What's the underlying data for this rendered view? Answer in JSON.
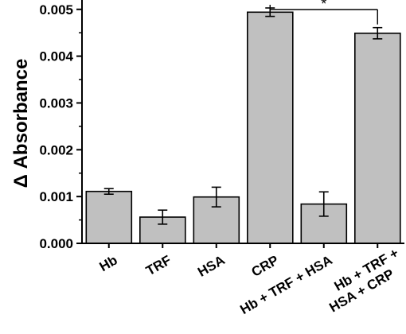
{
  "chart_data": {
    "type": "bar",
    "categories": [
      "Hb",
      "TRF",
      "HSA",
      "CRP",
      "Hb + TRF + HSA",
      "Hb + TRF +\nHSA + CRP"
    ],
    "values": [
      0.00111,
      0.00056,
      0.00099,
      0.00494,
      0.00084,
      0.00449
    ],
    "errors": [
      6e-05,
      0.00015,
      0.00021,
      9e-05,
      0.00026,
      0.00012
    ],
    "ylabel": "Δ Absorbance",
    "xlabel": "",
    "ylim": [
      0,
      0.0052
    ],
    "yticks": [
      "0.000",
      "0.001",
      "0.002",
      "0.003",
      "0.004",
      "0.005"
    ],
    "yticks_values": [
      0,
      0.001,
      0.002,
      0.003,
      0.004,
      0.005
    ],
    "significance": {
      "between": [
        3,
        5
      ],
      "label": "*"
    },
    "grid": false,
    "bar_color": "#c0c0c0",
    "edge_color": "#000000"
  }
}
